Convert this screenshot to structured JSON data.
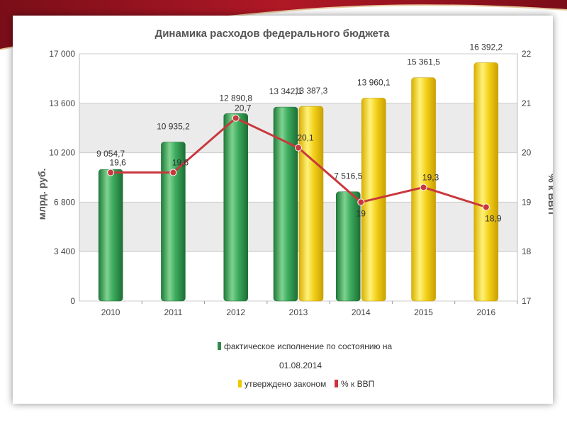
{
  "colors": {
    "actual_bar": "#3cab5e",
    "approved_bar": "#f4d21c",
    "gdp_line": "#c8383c",
    "decor_band": "#9e1420"
  },
  "chart_data": {
    "type": "bar",
    "title": "Динамика расходов федерального бюджета",
    "categories": [
      "2010",
      "2011",
      "2012",
      "2013",
      "2014",
      "2015",
      "2016"
    ],
    "ylabel": "млрд. руб.",
    "y2label": "% к ВВП",
    "ylim": [
      0,
      17000
    ],
    "y2lim": [
      17,
      22
    ],
    "yticks": [
      "0",
      "3 400",
      "6 800",
      "10 200",
      "13 600",
      "17 000"
    ],
    "y2ticks": [
      "17",
      "18",
      "19",
      "20",
      "21",
      "22"
    ],
    "grid": true,
    "legend_position": "bottom",
    "series": [
      {
        "name": "фактическое исполнение по состоянию на 01.08.2014",
        "kind": "bar",
        "values": [
          9054.7,
          10935.2,
          12890.8,
          13342.1,
          7516.5,
          null,
          null
        ],
        "labels": [
          "9 054,7",
          "10 935,2",
          "12 890,8",
          "13 342,1",
          "7 516,5",
          "",
          ""
        ]
      },
      {
        "name": "утверждено законом",
        "kind": "bar",
        "values": [
          null,
          null,
          null,
          13387.3,
          13960.1,
          15361.5,
          16392.2
        ],
        "labels": [
          "",
          "",
          "",
          "13 387,3",
          "13 960,1",
          "15 361,5",
          "16 392,2"
        ]
      },
      {
        "name": "% к ВВП",
        "kind": "line",
        "axis": "right",
        "values": [
          19.6,
          19.6,
          20.7,
          20.1,
          19.0,
          19.3,
          18.9
        ],
        "labels": [
          "19,6",
          "19,6",
          "20,7",
          "20,1",
          "19",
          "19,3",
          "18,9"
        ]
      }
    ],
    "legend": {
      "actual_line1": "фактическое исполнение по состоянию на",
      "actual_line2": "01.08.2014",
      "approved": "утверждено законом",
      "gdp": "% к ВВП"
    }
  }
}
